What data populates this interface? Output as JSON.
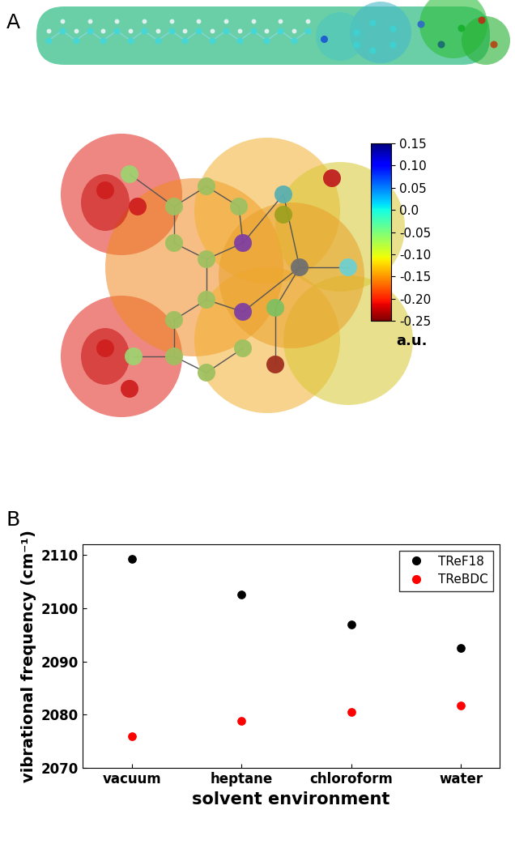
{
  "panel_labels": [
    "A",
    "B"
  ],
  "colorbar": {
    "range": [
      -0.25,
      0.15
    ],
    "label": "a.u.",
    "ticks": [
      {
        "value": 0.15,
        "label": "0.15"
      },
      {
        "value": 0.1,
        "label": "0.10"
      },
      {
        "value": 0.05,
        "label": "0.05"
      },
      {
        "value": 0,
        "label": "0.0"
      },
      {
        "value": -0.05,
        "label": "-0.05"
      },
      {
        "value": -0.1,
        "label": "-0.10"
      },
      {
        "value": -0.15,
        "label": "-0.15"
      },
      {
        "value": -0.2,
        "label": "-0.20"
      },
      {
        "value": -0.25,
        "label": "-0.25"
      }
    ]
  },
  "chart_data": {
    "type": "scatter",
    "x_label": "solvent environment",
    "y_label": "vibrational frequency (cm⁻¹)",
    "categories": [
      "vacuum",
      "heptane",
      "chloroform",
      "water"
    ],
    "series": [
      {
        "name": "TReF18",
        "color": "#000000",
        "marker": "circle",
        "values": [
          2109.2,
          2102.6,
          2097.0,
          2092.6
        ]
      },
      {
        "name": "TReBDC",
        "color": "#ff0000",
        "marker": "circle",
        "values": [
          2076.0,
          2078.8,
          2080.6,
          2081.8
        ]
      }
    ],
    "ylim": [
      2070,
      2112
    ],
    "yticks": [
      2070,
      2080,
      2090,
      2100,
      2110
    ],
    "legend": "upper right",
    "grid": false
  }
}
